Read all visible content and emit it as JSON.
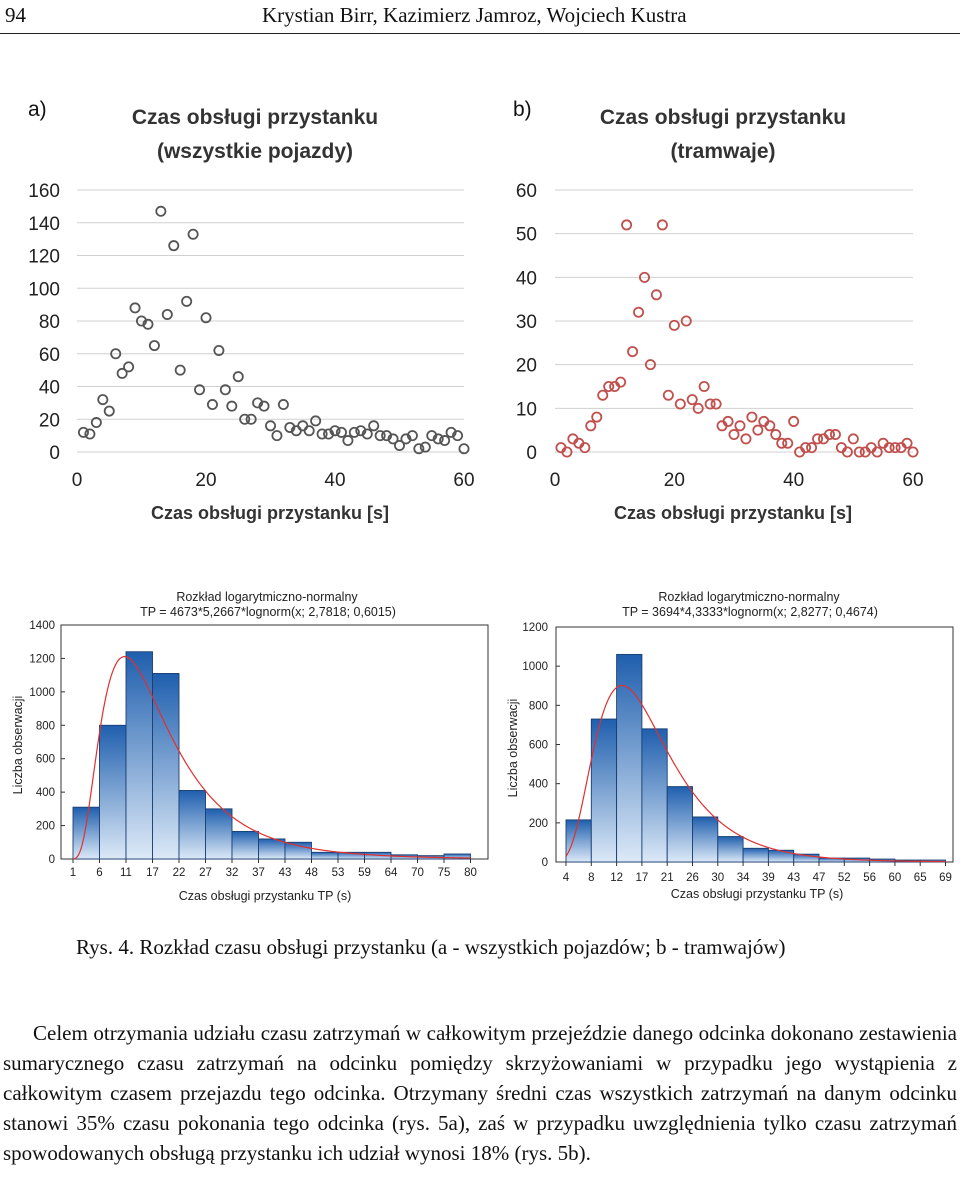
{
  "header": {
    "page_number": "94",
    "authors": "Krystian Birr, Kazimierz Jamroz, Wojciech Kustra"
  },
  "colors": {
    "scatter_a": "#555555",
    "scatter_b": "#c0504d",
    "bar_dark": "#1f5fae",
    "bar_light": "#dce9f7",
    "curve": "#e03030",
    "grid": "#d0d0d0"
  },
  "chart_data": [
    {
      "id": "scatter_a",
      "type": "scatter",
      "panel_label": "a)",
      "title_line1": "Czas obsługi przystanku",
      "title_line2": "(wszystkie pojazdy)",
      "xlabel": "Czas obsługi przystanku [s]",
      "ylabel": "",
      "xlim": [
        0,
        60
      ],
      "ylim": [
        0,
        160
      ],
      "xticks": [
        "0",
        "20",
        "40",
        "60"
      ],
      "xtick_values": [
        0,
        20,
        40,
        60
      ],
      "yticks": [
        "0",
        "20",
        "40",
        "60",
        "80",
        "100",
        "120",
        "140",
        "160"
      ],
      "ytick_values": [
        0,
        20,
        40,
        60,
        80,
        100,
        120,
        140,
        160
      ],
      "x": [
        1,
        2,
        3,
        4,
        5,
        6,
        7,
        8,
        9,
        10,
        11,
        12,
        13,
        14,
        15,
        16,
        17,
        18,
        19,
        20,
        21,
        22,
        23,
        24,
        25,
        26,
        27,
        28,
        29,
        30,
        31,
        32,
        33,
        34,
        35,
        36,
        37,
        38,
        39,
        40,
        41,
        42,
        43,
        44,
        45,
        46,
        47,
        48,
        49,
        50,
        51,
        52,
        53,
        54,
        55,
        56,
        57,
        58,
        59,
        60
      ],
      "y": [
        12,
        11,
        18,
        32,
        25,
        60,
        48,
        52,
        88,
        80,
        78,
        65,
        147,
        84,
        126,
        50,
        92,
        133,
        38,
        82,
        29,
        62,
        38,
        28,
        46,
        20,
        20,
        30,
        28,
        16,
        10,
        29,
        15,
        13,
        16,
        13,
        19,
        11,
        11,
        13,
        12,
        7,
        12,
        13,
        11,
        16,
        10,
        10,
        8,
        4,
        8,
        10,
        2,
        3,
        10,
        8,
        7,
        12,
        10,
        2
      ]
    },
    {
      "id": "scatter_b",
      "type": "scatter",
      "panel_label": "b)",
      "title_line1": "Czas obsługi przystanku",
      "title_line2": "(tramwaje)",
      "xlabel": "Czas obsługi przystanku [s]",
      "ylabel": "",
      "xlim": [
        0,
        60
      ],
      "ylim": [
        0,
        60
      ],
      "xticks": [
        "0",
        "20",
        "40",
        "60"
      ],
      "xtick_values": [
        0,
        20,
        40,
        60
      ],
      "yticks": [
        "0",
        "10",
        "20",
        "30",
        "40",
        "50",
        "60"
      ],
      "ytick_values": [
        0,
        10,
        20,
        30,
        40,
        50,
        60
      ],
      "x": [
        1,
        2,
        3,
        4,
        5,
        6,
        7,
        8,
        9,
        10,
        11,
        12,
        13,
        14,
        15,
        16,
        17,
        18,
        19,
        20,
        21,
        22,
        23,
        24,
        25,
        26,
        27,
        28,
        29,
        30,
        31,
        32,
        33,
        34,
        35,
        36,
        37,
        38,
        39,
        40,
        41,
        42,
        43,
        44,
        45,
        46,
        47,
        48,
        49,
        50,
        51,
        52,
        53,
        54,
        55,
        56,
        57,
        58,
        59,
        60
      ],
      "y": [
        1,
        0,
        3,
        2,
        1,
        6,
        8,
        13,
        15,
        15,
        16,
        52,
        23,
        32,
        40,
        20,
        36,
        52,
        13,
        29,
        11,
        30,
        12,
        10,
        15,
        11,
        11,
        6,
        7,
        4,
        6,
        3,
        8,
        5,
        7,
        6,
        4,
        2,
        2,
        7,
        0,
        1,
        1,
        3,
        3,
        4,
        4,
        1,
        0,
        3,
        0,
        0,
        1,
        0,
        2,
        1,
        1,
        1,
        2,
        0
      ]
    },
    {
      "id": "hist_a",
      "type": "bar",
      "title_line1": "Rozkład logarytmiczno-normalny",
      "title_line2": "TP = 4673*5,2667*lognorm(x; 2,7818; 0,6015)",
      "xlabel": "Czas obsługi przystanku TP (s)",
      "ylabel": "Liczba obserwacji",
      "ylim": [
        0,
        1400
      ],
      "yticks": [
        "0",
        "200",
        "400",
        "600",
        "800",
        "1000",
        "1200",
        "1400"
      ],
      "ytick_values": [
        0,
        200,
        400,
        600,
        800,
        1000,
        1200,
        1400
      ],
      "xticks": [
        "1",
        "6",
        "11",
        "17",
        "22",
        "27",
        "32",
        "37",
        "43",
        "48",
        "53",
        "59",
        "64",
        "70",
        "75",
        "80"
      ],
      "values": [
        310,
        800,
        1240,
        1110,
        410,
        300,
        165,
        120,
        100,
        40,
        40,
        40,
        25,
        20,
        30
      ],
      "fit": {
        "scale": 24611.3,
        "mu": 2.7818,
        "sigma": 0.6015,
        "x0": 1.0,
        "bin_width": 5.2667
      }
    },
    {
      "id": "hist_b",
      "type": "bar",
      "title_line1": "Rozkład logarytmiczno-normalny",
      "title_line2": "TP = 3694*4,3333*lognorm(x; 2,8277; 0,4674)",
      "xlabel": "Czas obsługi przystanku TP (s)",
      "ylabel": "Liczba obserwacji",
      "ylim": [
        0,
        1200
      ],
      "yticks": [
        "0",
        "200",
        "400",
        "600",
        "800",
        "1000",
        "1200"
      ],
      "ytick_values": [
        0,
        200,
        400,
        600,
        800,
        1000,
        1200
      ],
      "xticks": [
        "4",
        "8",
        "12",
        "17",
        "21",
        "26",
        "30",
        "34",
        "39",
        "43",
        "47",
        "52",
        "56",
        "60",
        "65",
        "69"
      ],
      "values": [
        215,
        730,
        1060,
        680,
        385,
        230,
        130,
        70,
        60,
        40,
        20,
        20,
        15,
        10,
        10
      ],
      "fit": {
        "scale": 16007.2,
        "mu": 2.8277,
        "sigma": 0.4674,
        "x0": 4.0,
        "bin_width": 4.3333
      }
    }
  ],
  "caption": "Rys. 4. Rozkład czasu obsługi przystanku (a - wszystkich pojazdów; b - tramwajów)",
  "body_text": "Celem otrzymania udziału czasu zatrzymań w całkowitym przejeździe danego odcinka dokonano zestawienia sumarycznego czasu zatrzymań na odcinku pomiędzy skrzyżowaniami w przypadku jego wystąpienia z całkowitym czasem przejazdu tego odcinka. Otrzymany średni czas wszystkich zatrzymań na danym odcinku stanowi 35% czasu pokonania tego odcinka (rys. 5a), zaś w przypadku uwzględnienia tylko czasu zatrzymań spowodowanych obsługą przystanku ich udział wynosi 18% (rys. 5b)."
}
